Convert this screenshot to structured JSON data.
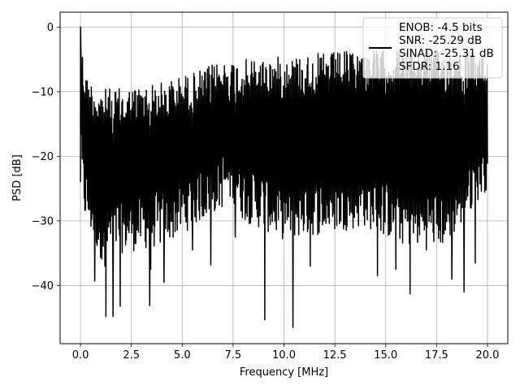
{
  "chart_data": {
    "type": "line",
    "title": "",
    "xlabel": "Frequency [MHz]",
    "ylabel": "PSD [dB]",
    "xlim": [
      -1.0,
      21.0
    ],
    "ylim": [
      -49.0,
      2.3
    ],
    "x_ticks": [
      0.0,
      2.5,
      5.0,
      7.5,
      10.0,
      12.5,
      15.0,
      17.5,
      20.0
    ],
    "x_tick_labels": [
      "0.0",
      "2.5",
      "5.0",
      "7.5",
      "10.0",
      "12.5",
      "15.0",
      "17.5",
      "20.0"
    ],
    "y_ticks": [
      0,
      -10,
      -20,
      -30,
      -40
    ],
    "y_tick_labels": [
      "0",
      "−10",
      "−20",
      "−30",
      "−40"
    ],
    "grid": true,
    "legend_position": "top-right",
    "legend_entries": [
      "ENOB: -4.5 bits",
      "SNR: -25.29 dB",
      "SINAD: -25.31 dB",
      "SFDR: 1.16"
    ],
    "series": [
      {
        "color": "#000000",
        "x_start": 0.0,
        "x_end": 20.0,
        "sample_count": 1200,
        "envelope_upper": [
          [
            0.0,
            0.0
          ],
          [
            0.1,
            -3.5
          ],
          [
            0.3,
            -7.5
          ],
          [
            1.0,
            -9.5
          ],
          [
            2.0,
            -9.5
          ],
          [
            3.0,
            -9.0
          ],
          [
            4.0,
            -8.5
          ],
          [
            5.0,
            -7.5
          ],
          [
            6.0,
            -6.5
          ],
          [
            7.0,
            -5.0
          ],
          [
            8.0,
            -5.0
          ],
          [
            10.0,
            -4.5
          ],
          [
            12.0,
            -4.0
          ],
          [
            14.0,
            -3.5
          ],
          [
            16.0,
            -3.5
          ],
          [
            18.0,
            -3.5
          ],
          [
            20.0,
            -4.0
          ]
        ],
        "envelope_lower": [
          [
            0.0,
            -24.0
          ],
          [
            0.2,
            -30.0
          ],
          [
            1.0,
            -36.0
          ],
          [
            2.0,
            -35.0
          ],
          [
            4.0,
            -34.0
          ],
          [
            7.5,
            -27.0
          ],
          [
            8.0,
            -30.0
          ],
          [
            10.0,
            -33.0
          ],
          [
            12.0,
            -32.0
          ],
          [
            14.0,
            -31.0
          ],
          [
            16.0,
            -34.0
          ],
          [
            18.0,
            -34.0
          ],
          [
            20.0,
            -25.0
          ]
        ],
        "deep_dips": [
          [
            0.7,
            -39.3
          ],
          [
            1.2,
            -37.0
          ],
          [
            1.25,
            -44.8
          ],
          [
            1.6,
            -44.8
          ],
          [
            1.95,
            -43.2
          ],
          [
            3.4,
            -43.1
          ],
          [
            3.45,
            -37.5
          ],
          [
            4.1,
            -39.5
          ],
          [
            5.5,
            -34.5
          ],
          [
            6.4,
            -36.8
          ],
          [
            7.6,
            -32.5
          ],
          [
            9.05,
            -45.3
          ],
          [
            10.45,
            -46.5
          ],
          [
            11.3,
            -37.0
          ],
          [
            14.6,
            -38.5
          ],
          [
            15.5,
            -37.5
          ],
          [
            16.2,
            -41.3
          ],
          [
            17.0,
            -34.5
          ],
          [
            18.25,
            -39.0
          ],
          [
            18.85,
            -41.0
          ],
          [
            19.4,
            -36.5
          ]
        ]
      }
    ]
  }
}
